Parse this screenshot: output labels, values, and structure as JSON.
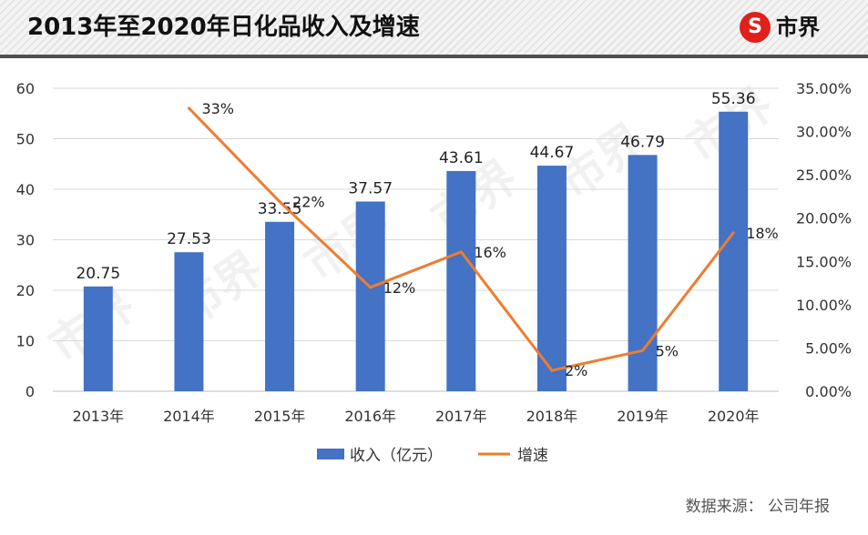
{
  "header": {
    "title": "2013年至2020年日化品收入及增速",
    "logo_text": "市界",
    "logo_glyph": "S"
  },
  "footer": {
    "source": "数据来源：  公司年报"
  },
  "watermark": "市界",
  "chart_data": {
    "type": "bar+line",
    "title": "2013年至2020年日化品收入及增速",
    "categories": [
      "2013年",
      "2014年",
      "2015年",
      "2016年",
      "2017年",
      "2018年",
      "2019年",
      "2020年"
    ],
    "series": [
      {
        "name": "收入（亿元）",
        "type": "bar",
        "axis": "left",
        "color": "#4472c4",
        "values": [
          20.75,
          27.53,
          33.55,
          37.57,
          43.61,
          44.67,
          46.79,
          55.36
        ],
        "labels": [
          "20.75",
          "27.53",
          "33.55",
          "37.57",
          "43.61",
          "44.67",
          "46.79",
          "55.36"
        ]
      },
      {
        "name": "增速",
        "type": "line",
        "axis": "right",
        "color": "#ed7d31",
        "values": [
          null,
          32.7,
          21.9,
          12.0,
          16.1,
          2.4,
          4.7,
          18.3
        ],
        "labels": [
          null,
          "33%",
          "22%",
          "12%",
          "16%",
          "2%",
          "5%",
          "18%"
        ]
      }
    ],
    "left_axis": {
      "range": [
        0,
        60
      ],
      "ticks": [
        "0",
        "10",
        "20",
        "30",
        "40",
        "50",
        "60"
      ]
    },
    "right_axis": {
      "range": [
        0,
        35
      ],
      "ticks": [
        "0.00%",
        "5.00%",
        "10.00%",
        "15.00%",
        "20.00%",
        "25.00%",
        "30.00%",
        "35.00%"
      ]
    },
    "grid": true,
    "legend": "bottom"
  }
}
